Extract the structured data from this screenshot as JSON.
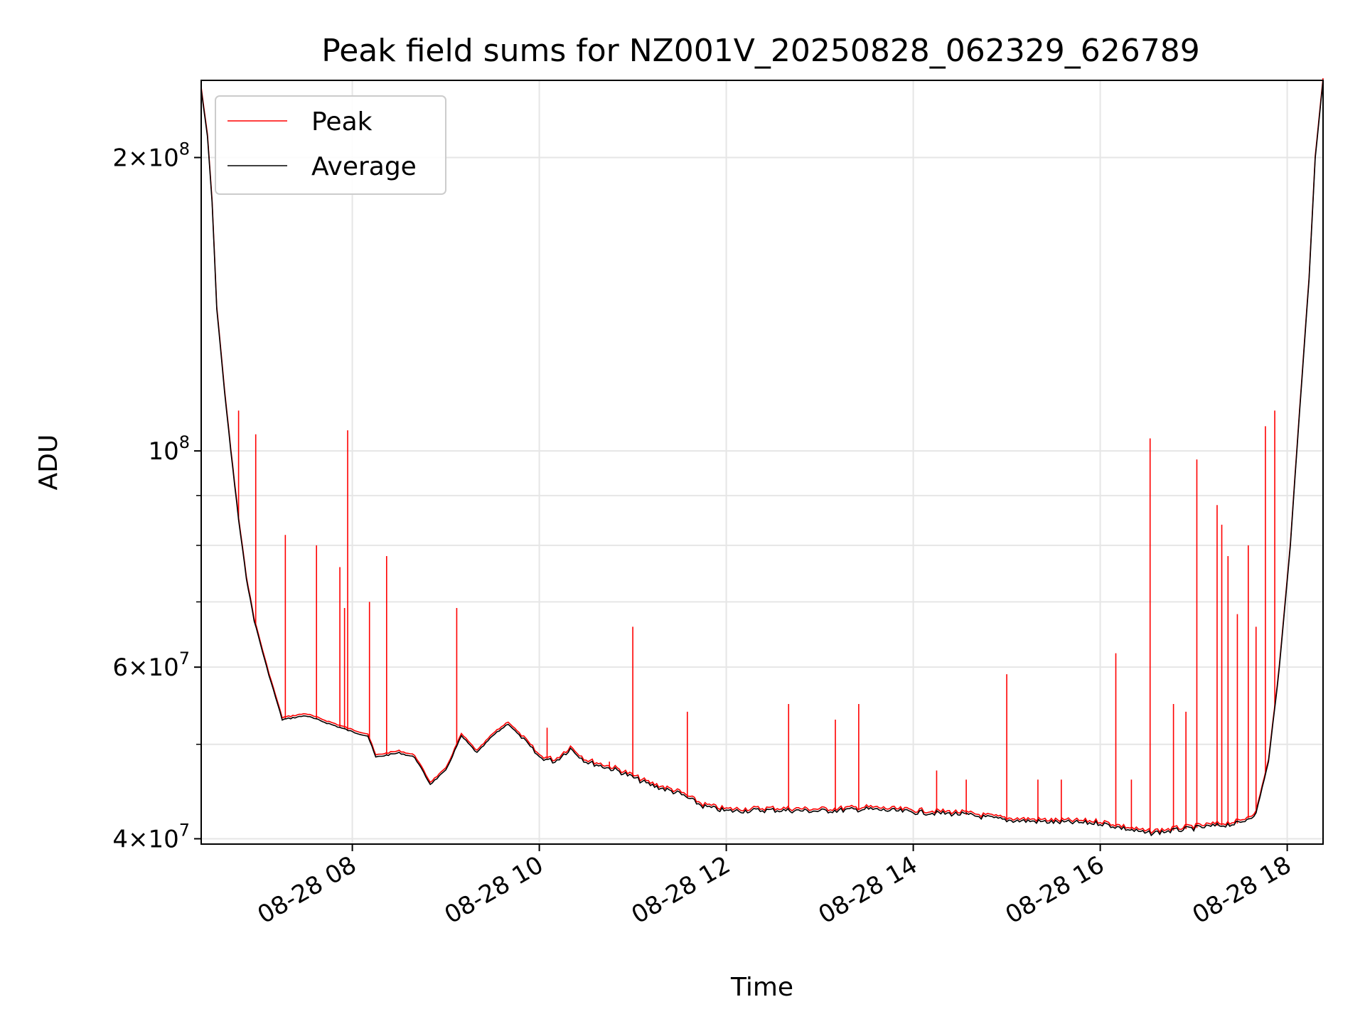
{
  "chart_data": {
    "type": "line",
    "title": "Peak field sums for NZ001V_20250828_062329_626789",
    "xlabel": "Time",
    "ylabel": "ADU",
    "y_scale": "log",
    "ylim": [
      39500000,
      240000000
    ],
    "xlim": [
      "2025-08-28 06:23",
      "2025-08-28 18:23"
    ],
    "x_ticks": [
      {
        "t": "2025-08-28 08:00",
        "label": "08-28 08"
      },
      {
        "t": "2025-08-28 10:00",
        "label": "08-28 10"
      },
      {
        "t": "2025-08-28 12:00",
        "label": "08-28 12"
      },
      {
        "t": "2025-08-28 14:00",
        "label": "08-28 14"
      },
      {
        "t": "2025-08-28 16:00",
        "label": "08-28 16"
      },
      {
        "t": "2025-08-28 18:00",
        "label": "08-28 18"
      }
    ],
    "y_ticks": [
      {
        "v": 40000000,
        "base": "4",
        "exp": "7"
      },
      {
        "v": 60000000,
        "base": "6",
        "exp": "7"
      },
      {
        "v": 100000000,
        "base": "",
        "exp": "8"
      },
      {
        "v": 200000000,
        "base": "2",
        "exp": "8"
      }
    ],
    "grid": true,
    "legend_position": "upper-left",
    "series": [
      {
        "name": "Peak",
        "color": "#ff0000",
        "spikes": [
          [
            "2025-08-28 06:47",
            110000000
          ],
          [
            "2025-08-28 06:58",
            104000000
          ],
          [
            "2025-08-28 07:17",
            82000000
          ],
          [
            "2025-08-28 07:37",
            80000000
          ],
          [
            "2025-08-28 07:52",
            76000000
          ],
          [
            "2025-08-28 07:55",
            69000000
          ],
          [
            "2025-08-28 07:57",
            105000000
          ],
          [
            "2025-08-28 08:11",
            70000000
          ],
          [
            "2025-08-28 08:22",
            78000000
          ],
          [
            "2025-08-28 09:07",
            69000000
          ],
          [
            "2025-08-28 09:48",
            51000000
          ],
          [
            "2025-08-28 10:05",
            52000000
          ],
          [
            "2025-08-28 10:45",
            48000000
          ],
          [
            "2025-08-28 11:00",
            66000000
          ],
          [
            "2025-08-28 11:35",
            54000000
          ],
          [
            "2025-08-28 12:40",
            55000000
          ],
          [
            "2025-08-28 13:10",
            53000000
          ],
          [
            "2025-08-28 13:25",
            55000000
          ],
          [
            "2025-08-28 14:15",
            47000000
          ],
          [
            "2025-08-28 14:34",
            46000000
          ],
          [
            "2025-08-28 15:00",
            59000000
          ],
          [
            "2025-08-28 15:20",
            46000000
          ],
          [
            "2025-08-28 15:35",
            46000000
          ],
          [
            "2025-08-28 16:10",
            62000000
          ],
          [
            "2025-08-28 16:20",
            46000000
          ],
          [
            "2025-08-28 16:32",
            103000000
          ],
          [
            "2025-08-28 16:47",
            55000000
          ],
          [
            "2025-08-28 16:55",
            54000000
          ],
          [
            "2025-08-28 17:02",
            98000000
          ],
          [
            "2025-08-28 17:15",
            88000000
          ],
          [
            "2025-08-28 17:18",
            84000000
          ],
          [
            "2025-08-28 17:22",
            78000000
          ],
          [
            "2025-08-28 17:28",
            68000000
          ],
          [
            "2025-08-28 17:35",
            80000000
          ],
          [
            "2025-08-28 17:40",
            66000000
          ],
          [
            "2025-08-28 17:46",
            106000000
          ],
          [
            "2025-08-28 17:52",
            110000000
          ]
        ]
      },
      {
        "name": "Average",
        "color": "#000000",
        "points": [
          [
            "2025-08-28 06:23",
            235000000
          ],
          [
            "2025-08-28 06:27",
            210000000
          ],
          [
            "2025-08-28 06:30",
            180000000
          ],
          [
            "2025-08-28 06:33",
            140000000
          ],
          [
            "2025-08-28 06:38",
            115000000
          ],
          [
            "2025-08-28 06:42",
            100000000
          ],
          [
            "2025-08-28 06:47",
            85000000
          ],
          [
            "2025-08-28 06:52",
            74000000
          ],
          [
            "2025-08-28 06:57",
            67000000
          ],
          [
            "2025-08-28 07:05",
            60000000
          ],
          [
            "2025-08-28 07:15",
            53000000
          ],
          [
            "2025-08-28 07:30",
            53500000
          ],
          [
            "2025-08-28 07:45",
            52500000
          ],
          [
            "2025-08-28 08:00",
            51500000
          ],
          [
            "2025-08-28 08:10",
            51000000
          ],
          [
            "2025-08-28 08:15",
            48500000
          ],
          [
            "2025-08-28 08:30",
            49000000
          ],
          [
            "2025-08-28 08:40",
            48500000
          ],
          [
            "2025-08-28 08:50",
            45500000
          ],
          [
            "2025-08-28 09:00",
            47000000
          ],
          [
            "2025-08-28 09:10",
            51000000
          ],
          [
            "2025-08-28 09:20",
            49000000
          ],
          [
            "2025-08-28 09:30",
            51000000
          ],
          [
            "2025-08-28 09:40",
            52500000
          ],
          [
            "2025-08-28 09:50",
            50500000
          ],
          [
            "2025-08-28 10:00",
            48500000
          ],
          [
            "2025-08-28 10:10",
            48000000
          ],
          [
            "2025-08-28 10:20",
            49500000
          ],
          [
            "2025-08-28 10:30",
            48000000
          ],
          [
            "2025-08-28 10:50",
            47000000
          ],
          [
            "2025-08-28 11:10",
            45500000
          ],
          [
            "2025-08-28 11:30",
            44500000
          ],
          [
            "2025-08-28 11:45",
            43200000
          ],
          [
            "2025-08-28 12:00",
            42700000
          ],
          [
            "2025-08-28 12:30",
            42800000
          ],
          [
            "2025-08-28 13:00",
            42700000
          ],
          [
            "2025-08-28 13:30",
            42900000
          ],
          [
            "2025-08-28 14:00",
            42600000
          ],
          [
            "2025-08-28 14:30",
            42400000
          ],
          [
            "2025-08-28 15:00",
            41800000
          ],
          [
            "2025-08-28 15:30",
            41600000
          ],
          [
            "2025-08-28 16:00",
            41500000
          ],
          [
            "2025-08-28 16:30",
            40500000
          ],
          [
            "2025-08-28 17:00",
            41000000
          ],
          [
            "2025-08-28 17:30",
            41500000
          ],
          [
            "2025-08-28 17:40",
            42500000
          ],
          [
            "2025-08-28 17:48",
            48000000
          ],
          [
            "2025-08-28 17:55",
            60000000
          ],
          [
            "2025-08-28 18:02",
            80000000
          ],
          [
            "2025-08-28 18:08",
            110000000
          ],
          [
            "2025-08-28 18:14",
            150000000
          ],
          [
            "2025-08-28 18:18",
            200000000
          ],
          [
            "2025-08-28 18:23",
            240000000
          ]
        ]
      }
    ]
  }
}
